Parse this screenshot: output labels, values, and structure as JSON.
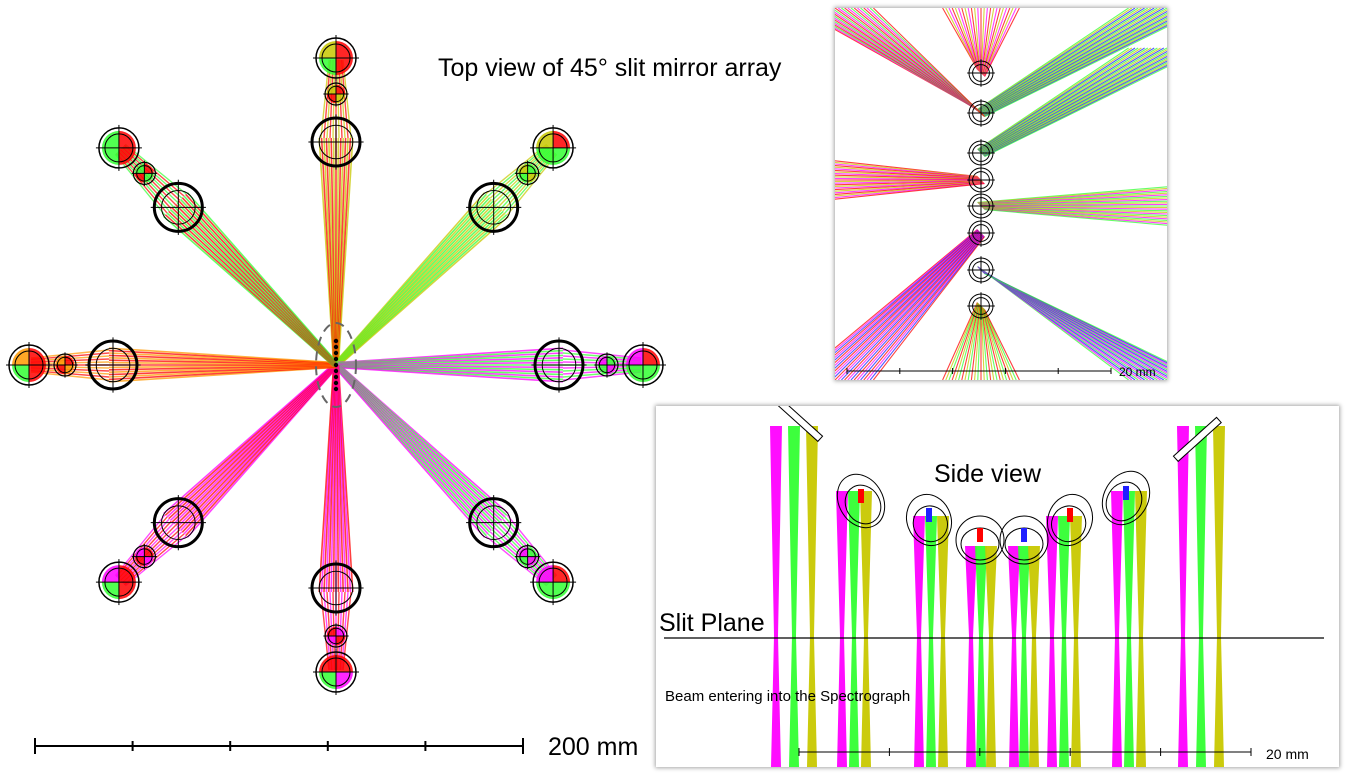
{
  "main": {
    "title": "Top view of 45° slit mirror array",
    "scale_label": "200 mm"
  },
  "top_inset": {
    "scale_label": "20 mm"
  },
  "side_inset": {
    "title": "Side view",
    "slit_plane_label": "Slit Plane",
    "beam_label": "Beam entering into the Spectrograph",
    "scale_label": "20 mm"
  },
  "colors": {
    "red": "#ff0000",
    "green": "#33ff33",
    "magenta": "#ff00ff",
    "olive": "#c8c800",
    "blue": "#2020ff",
    "orange": "#ff9900"
  }
}
